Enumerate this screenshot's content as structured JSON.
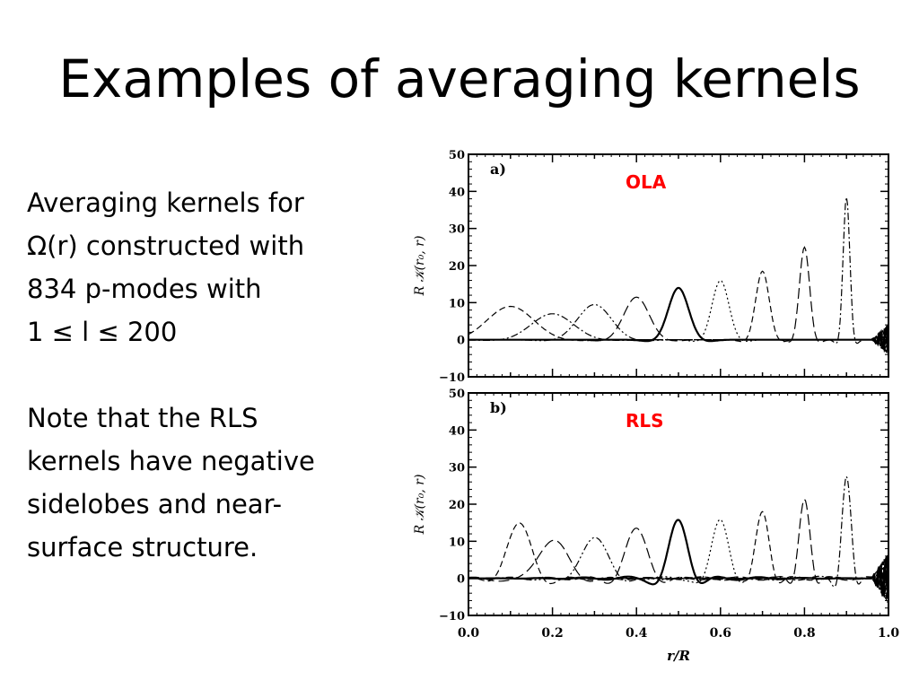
{
  "slide": {
    "title": "Examples of averaging kernels",
    "paragraph1": [
      "Averaging kernels for",
      "Ω(r) constructed with",
      "834 p-modes with",
      "1 ≤ l ≤ 200"
    ],
    "paragraph2": [
      "Note that the RLS",
      "kernels have negative",
      "sidelobes and near-",
      "surface structure."
    ]
  },
  "chart_data": [
    {
      "type": "line",
      "panel_label": "a)",
      "method_label": "OLA",
      "method_label_color": "#ff0000",
      "ylabel": "R 𝒦(r₀, r)",
      "xlim": [
        0.0,
        1.0
      ],
      "ylim": [
        -10,
        50
      ],
      "y_ticks": [
        -10,
        0,
        10,
        20,
        30,
        40,
        50
      ],
      "y_tick_labels": [
        "−10",
        "0",
        "10",
        "20",
        "30",
        "40",
        "50"
      ],
      "grid": false,
      "series": [
        {
          "r0": 0.1,
          "peak": 9,
          "width": 0.055,
          "dash": "dash"
        },
        {
          "r0": 0.2,
          "peak": 7,
          "width": 0.05,
          "dash": "dashdot"
        },
        {
          "r0": 0.3,
          "peak": 9.5,
          "width": 0.04,
          "dash": "dashdotdot"
        },
        {
          "r0": 0.4,
          "peak": 11.5,
          "width": 0.03,
          "dash": "longdash"
        },
        {
          "r0": 0.5,
          "peak": 14,
          "width": 0.024,
          "dash": "solid"
        },
        {
          "r0": 0.6,
          "peak": 16,
          "width": 0.02,
          "dash": "dot"
        },
        {
          "r0": 0.7,
          "peak": 18.5,
          "width": 0.016,
          "dash": "dash"
        },
        {
          "r0": 0.8,
          "peak": 25,
          "width": 0.012,
          "dash": "longdash"
        },
        {
          "r0": 0.9,
          "peak": 38.5,
          "width": 0.008,
          "dash": "dashdot"
        }
      ]
    },
    {
      "type": "line",
      "panel_label": "b)",
      "method_label": "RLS",
      "method_label_color": "#ff0000",
      "ylabel": "R 𝒦(r₀, r)",
      "xlabel": "r/R",
      "xlim": [
        0.0,
        1.0
      ],
      "ylim": [
        -10,
        50
      ],
      "x_ticks": [
        0.0,
        0.2,
        0.4,
        0.6,
        0.8,
        1.0
      ],
      "x_tick_labels": [
        "0.0",
        "0.2",
        "0.4",
        "0.6",
        "0.8",
        "1.0"
      ],
      "y_ticks": [
        -10,
        0,
        10,
        20,
        30,
        40,
        50
      ],
      "y_tick_labels": [
        "−10",
        "0",
        "10",
        "20",
        "30",
        "40",
        "50"
      ],
      "grid": false,
      "series": [
        {
          "r0": 0.12,
          "peak": 14.5,
          "width": 0.03,
          "dash": "dash"
        },
        {
          "r0": 0.2,
          "peak": 10,
          "width": 0.038,
          "dash": "longdash"
        },
        {
          "r0": 0.3,
          "peak": 10.5,
          "width": 0.034,
          "dash": "dashdotdot"
        },
        {
          "r0": 0.4,
          "peak": 13,
          "width": 0.027,
          "dash": "longdash"
        },
        {
          "r0": 0.5,
          "peak": 15.5,
          "width": 0.022,
          "dash": "solid"
        },
        {
          "r0": 0.6,
          "peak": 16,
          "width": 0.02,
          "dash": "dot"
        },
        {
          "r0": 0.7,
          "peak": 18.5,
          "width": 0.016,
          "dash": "dash"
        },
        {
          "r0": 0.8,
          "peak": 22,
          "width": 0.013,
          "dash": "longdash"
        },
        {
          "r0": 0.9,
          "peak": 28,
          "width": 0.011,
          "dash": "dashdot"
        }
      ]
    }
  ]
}
